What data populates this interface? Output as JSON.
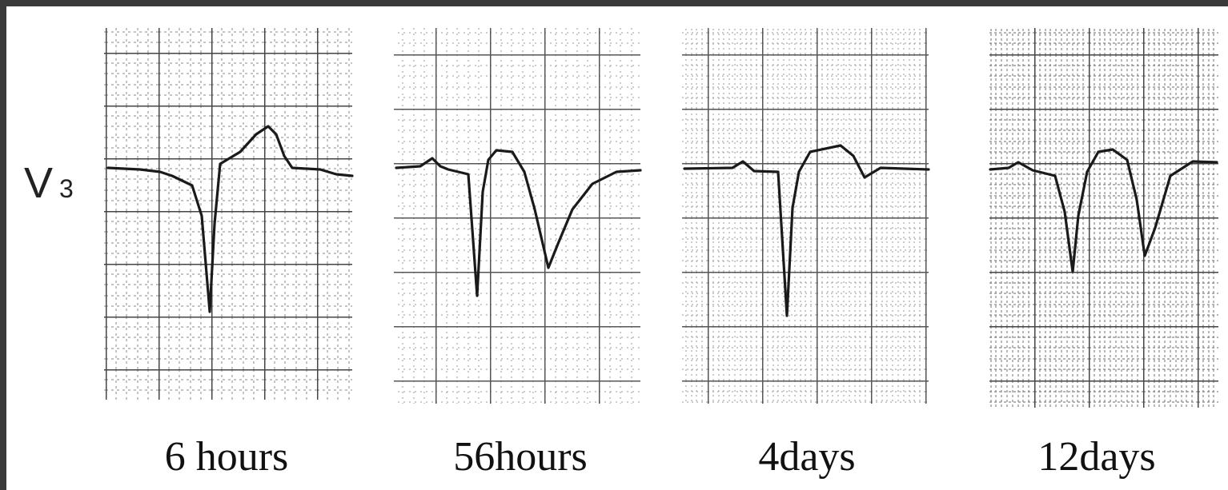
{
  "lead": {
    "name": "V",
    "subscript": "3"
  },
  "panels": [
    {
      "label": "6 hours"
    },
    {
      "label": "56hours"
    },
    {
      "label": "4days"
    },
    {
      "label": "12days"
    }
  ]
}
